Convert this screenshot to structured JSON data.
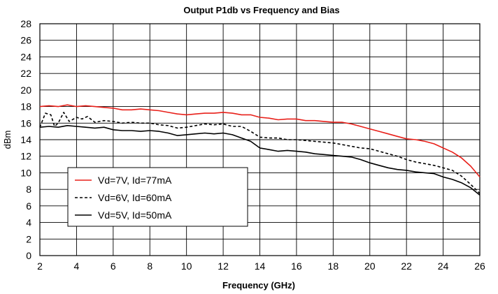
{
  "chart_data": {
    "type": "line",
    "title": "Output P1db vs Frequency and Bias",
    "xlabel": "Frequency (GHz)",
    "ylabel": "dBm",
    "xlim": [
      2,
      26
    ],
    "ylim": [
      0,
      28
    ],
    "xticks": [
      2,
      4,
      6,
      8,
      10,
      12,
      14,
      16,
      18,
      20,
      22,
      24,
      26
    ],
    "yticks": [
      0,
      2,
      4,
      6,
      8,
      10,
      12,
      14,
      16,
      18,
      20,
      22,
      24,
      26,
      28
    ],
    "grid": true,
    "legend_position": "lower-left",
    "series": [
      {
        "name": "Vd=7V, Id=77mA",
        "color": "#e8201a",
        "dash": "solid",
        "x": [
          2,
          2.5,
          3,
          3.5,
          4,
          4.5,
          5,
          5.5,
          6,
          6.5,
          7,
          7.5,
          8,
          8.5,
          9,
          9.5,
          10,
          10.5,
          11,
          11.5,
          12,
          12.5,
          13,
          13.5,
          14,
          14.5,
          15,
          15.5,
          16,
          16.5,
          17,
          17.5,
          18,
          18.5,
          19,
          19.5,
          20,
          20.5,
          21,
          21.5,
          22,
          22.5,
          23,
          23.5,
          24,
          24.5,
          25,
          25.5,
          26
        ],
        "y": [
          18.0,
          18.1,
          18.0,
          18.2,
          18.0,
          18.1,
          18.0,
          17.9,
          17.8,
          17.6,
          17.6,
          17.7,
          17.6,
          17.5,
          17.3,
          17.1,
          17.0,
          17.1,
          17.2,
          17.2,
          17.3,
          17.2,
          17.0,
          17.0,
          16.7,
          16.6,
          16.4,
          16.5,
          16.5,
          16.3,
          16.3,
          16.2,
          16.1,
          16.1,
          15.9,
          15.6,
          15.3,
          15.0,
          14.7,
          14.4,
          14.1,
          14.0,
          13.8,
          13.5,
          13.0,
          12.5,
          11.8,
          10.8,
          9.5
        ]
      },
      {
        "name": "Vd=6V, Id=60mA",
        "color": "#000000",
        "dash": "dashed",
        "x": [
          2,
          2.3,
          2.6,
          2.8,
          3.0,
          3.3,
          3.6,
          4.0,
          4.3,
          4.6,
          5.0,
          5.5,
          6,
          6.5,
          7,
          7.5,
          8,
          8.5,
          9,
          9.5,
          10,
          10.5,
          11,
          11.5,
          12,
          12.5,
          13,
          13.5,
          14,
          14.5,
          15,
          15.5,
          16,
          16.5,
          17,
          17.5,
          18,
          18.5,
          19,
          19.5,
          20,
          20.5,
          21,
          21.5,
          22,
          22.5,
          23,
          23.5,
          24,
          24.5,
          25,
          25.5,
          26
        ],
        "y": [
          15.5,
          17.2,
          17.0,
          15.6,
          16.0,
          17.3,
          16.2,
          16.7,
          16.5,
          16.8,
          16.1,
          16.3,
          16.2,
          16.0,
          16.1,
          16.0,
          16.0,
          15.8,
          15.7,
          15.4,
          15.5,
          15.7,
          15.9,
          15.8,
          15.9,
          15.6,
          15.6,
          15.0,
          14.3,
          14.2,
          14.2,
          14.0,
          14.0,
          13.9,
          13.8,
          13.7,
          13.6,
          13.4,
          13.2,
          13.0,
          12.9,
          12.6,
          12.3,
          12.0,
          11.6,
          11.3,
          11.1,
          10.9,
          10.6,
          10.3,
          9.6,
          8.6,
          7.5
        ]
      },
      {
        "name": "Vd=5V, Id=50mA",
        "color": "#000000",
        "dash": "solid",
        "x": [
          2,
          2.5,
          3,
          3.5,
          4,
          4.5,
          5,
          5.5,
          6,
          6.5,
          7,
          7.5,
          8,
          8.5,
          9,
          9.5,
          10,
          10.5,
          11,
          11.5,
          12,
          12.5,
          13,
          13.5,
          14,
          14.5,
          15,
          15.5,
          16,
          16.5,
          17,
          17.5,
          18,
          18.5,
          19,
          19.5,
          20,
          20.5,
          21,
          21.5,
          22,
          22.5,
          23,
          23.5,
          24,
          24.5,
          25,
          25.5,
          26
        ],
        "y": [
          15.5,
          15.6,
          15.5,
          15.7,
          15.6,
          15.5,
          15.4,
          15.5,
          15.2,
          15.1,
          15.1,
          15.0,
          15.1,
          15.0,
          14.8,
          14.5,
          14.6,
          14.7,
          14.8,
          14.7,
          14.8,
          14.6,
          14.2,
          13.8,
          13.0,
          12.8,
          12.6,
          12.7,
          12.6,
          12.5,
          12.3,
          12.2,
          12.1,
          12.0,
          11.9,
          11.6,
          11.2,
          10.9,
          10.6,
          10.4,
          10.3,
          10.1,
          10.0,
          9.9,
          9.5,
          9.2,
          8.8,
          8.2,
          7.3
        ]
      }
    ]
  }
}
